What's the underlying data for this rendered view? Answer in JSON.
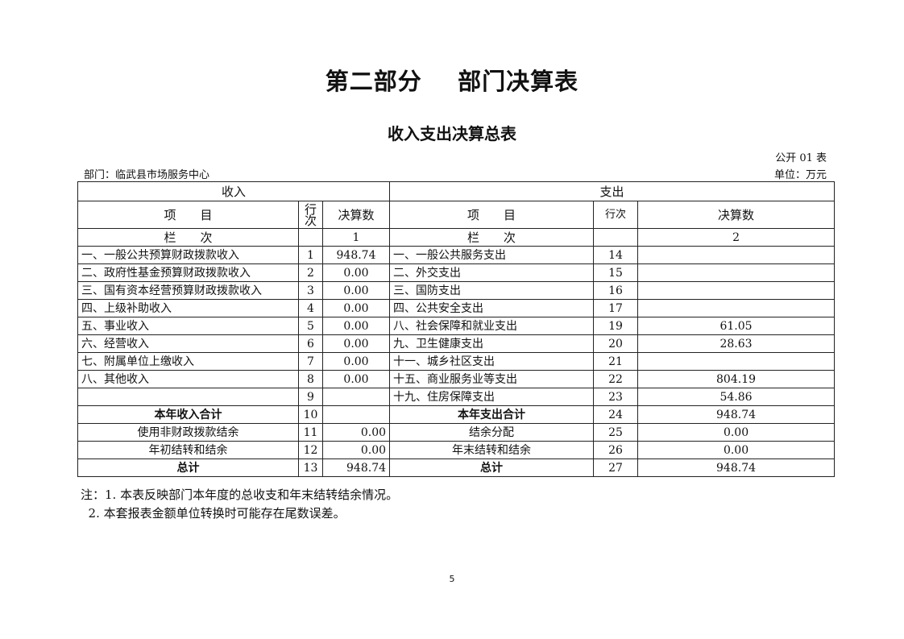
{
  "title": "第二部分    部门决算表",
  "subtitle": "收入支出决算总表",
  "table_no": "公开 01 表",
  "department": "部门：临武县市场服务中心",
  "unit": "单位：万元",
  "headers": {
    "income": "收入",
    "expense": "支出",
    "item": "项　　目",
    "row_no_income": "行次",
    "row_no_expense": "行次",
    "amount": "决算数",
    "column_label": "栏　　次",
    "income_col": "1",
    "expense_col": "2"
  },
  "rows": [
    {
      "in_label": "一、一般公共预算财政拨款收入",
      "in_no": "1",
      "in_val": "948.74",
      "ex_label": "一、一般公共服务支出",
      "ex_no": "14",
      "ex_val": ""
    },
    {
      "in_label": "二、政府性基金预算财政拨款收入",
      "in_no": "2",
      "in_val": "0.00",
      "ex_label": "二、外交支出",
      "ex_no": "15",
      "ex_val": ""
    },
    {
      "in_label": "三、国有资本经营预算财政拨款收入",
      "in_no": "3",
      "in_val": "0.00",
      "ex_label": "三、国防支出",
      "ex_no": "16",
      "ex_val": ""
    },
    {
      "in_label": "四、上级补助收入",
      "in_no": "4",
      "in_val": "0.00",
      "ex_label": "四、公共安全支出",
      "ex_no": "17",
      "ex_val": ""
    },
    {
      "in_label": "五、事业收入",
      "in_no": "5",
      "in_val": "0.00",
      "ex_label": "八、社会保障和就业支出",
      "ex_no": "19",
      "ex_val": "61.05"
    },
    {
      "in_label": "六、经营收入",
      "in_no": "6",
      "in_val": "0.00",
      "ex_label": "九、卫生健康支出",
      "ex_no": "20",
      "ex_val": "28.63"
    },
    {
      "in_label": "七、附属单位上缴收入",
      "in_no": "7",
      "in_val": "0.00",
      "ex_label": "十一、城乡社区支出",
      "ex_no": "21",
      "ex_val": ""
    },
    {
      "in_label": "八、其他收入",
      "in_no": "8",
      "in_val": "0.00",
      "ex_label": "十五、商业服务业等支出",
      "ex_no": "22",
      "ex_val": "804.19"
    },
    {
      "in_label": "",
      "in_no": "9",
      "in_val": "",
      "ex_label": "十九、住房保障支出",
      "ex_no": "23",
      "ex_val": "54.86"
    },
    {
      "in_label": "本年收入合计",
      "in_no": "10",
      "in_val": "",
      "ex_label": "本年支出合计",
      "ex_no": "24",
      "ex_val": "948.74",
      "summary": true,
      "bold": true
    },
    {
      "in_label": "使用非财政拨款结余",
      "in_no": "11",
      "in_val": "0.00",
      "ex_label": "结余分配",
      "ex_no": "25",
      "ex_val": "0.00",
      "summary": true
    },
    {
      "in_label": "年初结转和结余",
      "in_no": "12",
      "in_val": "0.00",
      "ex_label": "年末结转和结余",
      "ex_no": "26",
      "ex_val": "0.00",
      "summary": true
    },
    {
      "in_label": "总计",
      "in_no": "13",
      "in_val": "948.74",
      "ex_label": "总计",
      "ex_no": "27",
      "ex_val": "948.74",
      "summary": true,
      "bold": true
    }
  ],
  "notes": [
    "注：1. 本表反映部门本年度的总收支和年末结转结余情况。",
    "  2. 本套报表金额单位转换时可能存在尾数误差。"
  ],
  "page_number": "5"
}
